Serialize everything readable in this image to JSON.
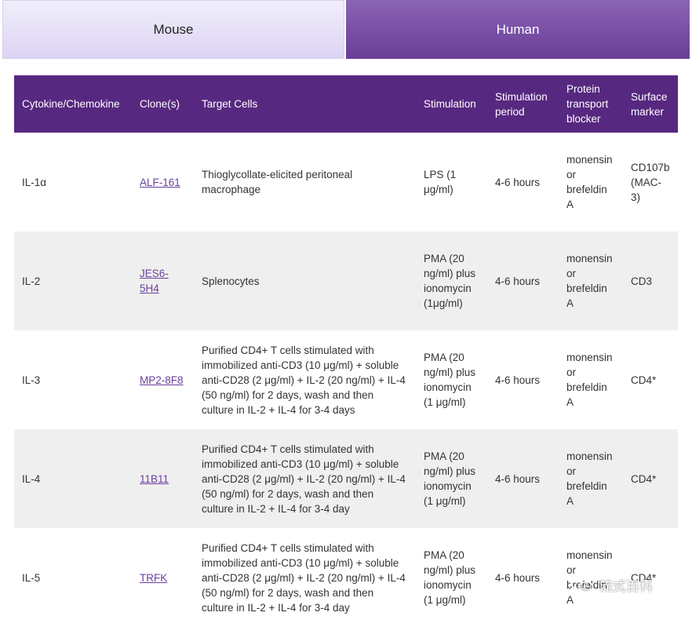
{
  "tabs": [
    {
      "label": "Mouse"
    },
    {
      "label": "Human"
    }
  ],
  "table": {
    "headers": [
      "Cytokine/Chemokine",
      "Clone(s)",
      "Target Cells",
      "Stimulation",
      "Stimulation period",
      "Protein transport blocker",
      "Surface marker"
    ],
    "rows": [
      {
        "cytokine": "IL-1α",
        "clone": "ALF-161",
        "target": "Thioglycollate-elicited peritoneal macrophage",
        "stimulation": "LPS (1 μg/ml)",
        "period": "4-6 hours",
        "blocker": "monensin or brefeldin A",
        "marker": "CD107b (MAC-3)"
      },
      {
        "cytokine": "IL-2",
        "clone": "JES6-5H4",
        "target": "Splenocytes",
        "stimulation": "PMA (20 ng/ml) plus ionomycin (1μg/ml)",
        "period": "4-6 hours",
        "blocker": "monensin or brefeldin A",
        "marker": "CD3"
      },
      {
        "cytokine": "IL-3",
        "clone": "MP2-8F8",
        "target": "Purified CD4+ T cells stimulated with immobilized anti-CD3 (10 μg/ml) + soluble anti-CD28 (2 μg/ml) + IL-2 (20 ng/ml) + IL-4 (50 ng/ml) for 2 days, wash and then culture in IL-2 + IL-4 for 3-4 days",
        "stimulation": "PMA (20 ng/ml) plus ionomycin (1 μg/ml)",
        "period": "4-6 hours",
        "blocker": "monensin or brefeldin A",
        "marker": "CD4*"
      },
      {
        "cytokine": "IL-4",
        "clone": "11B11",
        "target": "Purified CD4+ T cells stimulated with immobilized anti-CD3 (10 μg/ml) + soluble anti-CD28 (2 μg/ml) + IL-2 (20 ng/ml) + IL-4 (50 ng/ml) for 2 days, wash and then culture in IL-2 + IL-4 for 3-4 day",
        "stimulation": "PMA (20 ng/ml) plus ionomycin (1 μg/ml)",
        "period": "4-6 hours",
        "blocker": "monensin or brefeldin A",
        "marker": "CD4*"
      },
      {
        "cytokine": "IL-5",
        "clone": "TRFK",
        "target": "Purified CD4+ T cells stimulated with immobilized anti-CD3 (10 μg/ml) + soluble anti-CD28 (2 μg/ml) + IL-2 (20 ng/ml) + IL-4 (50 ng/ml) for 2 days, wash and then culture in IL-2 + IL-4 for 3-4 day",
        "stimulation": "PMA (20 ng/ml) plus ionomycin (1 μg/ml)",
        "period": "4-6 hours",
        "blocker": "monensin or brefeldin A",
        "marker": "CD4*"
      }
    ]
  },
  "watermark": {
    "text": "流式百科",
    "icon": "wechat-icon"
  }
}
